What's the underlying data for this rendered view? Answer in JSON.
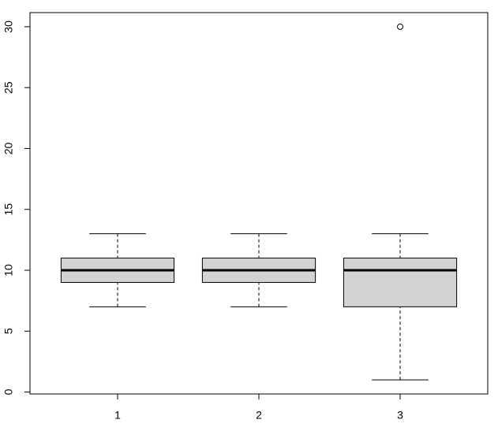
{
  "chart_data": {
    "type": "box",
    "categories": [
      "1",
      "2",
      "3"
    ],
    "boxes": [
      {
        "whislo": 7,
        "q1": 9,
        "med": 10,
        "q3": 11,
        "whishi": 13,
        "outliers": []
      },
      {
        "whislo": 7,
        "q1": 9,
        "med": 10,
        "q3": 11,
        "whishi": 13,
        "outliers": []
      },
      {
        "whislo": 1,
        "q1": 7,
        "med": 10,
        "q3": 11,
        "whishi": 13,
        "outliers": [
          30
        ]
      }
    ],
    "color": "#d3d3d3",
    "ylim": [
      -0.16,
      31.16
    ],
    "yticks": [
      0,
      5,
      10,
      15,
      20,
      25,
      30
    ],
    "grid": false
  }
}
